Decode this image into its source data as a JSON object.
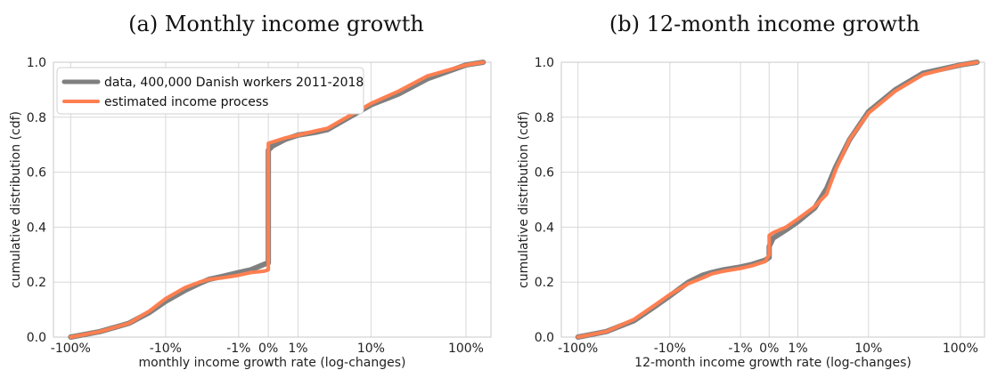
{
  "colors": {
    "data": "#808080",
    "model": "#ff7f50",
    "grid": "#d8d8d8"
  },
  "chart_data": [
    {
      "type": "line",
      "title": "(a) Monthly income growth",
      "xlabel": "monthly income growth rate (log-changes)",
      "ylabel": "cumulative distribution (cdf)",
      "x_ticks": [
        "-100%",
        "-10%",
        "-1%",
        "0%",
        "1%",
        "10%",
        "100%"
      ],
      "y_ticks": [
        "0.0",
        "0.2",
        "0.4",
        "0.6",
        "0.8",
        "1.0"
      ],
      "ylim": [
        0,
        1
      ],
      "legend": "top-left",
      "series": [
        {
          "name": "data, 400,000 Danish workers 2011-2018",
          "x": [
            "-100%",
            "-50%",
            "-25%",
            "-15%",
            "-10%",
            "-6%",
            "-4%",
            "-3%",
            "-2%",
            "-1%",
            "-0.5%",
            "-0.1%",
            "0%",
            "0%",
            "0.1%",
            "0.5%",
            "1%",
            "2%",
            "3%",
            "4%",
            "6%",
            "10%",
            "20%",
            "40%",
            "100%",
            "150%"
          ],
          "y": [
            0.0,
            0.02,
            0.05,
            0.09,
            0.13,
            0.17,
            0.195,
            0.21,
            0.22,
            0.235,
            0.245,
            0.265,
            0.27,
            0.68,
            0.695,
            0.72,
            0.735,
            0.745,
            0.755,
            0.775,
            0.805,
            0.845,
            0.885,
            0.94,
            0.99,
            1.0
          ]
        },
        {
          "name": "estimated income process",
          "x": [
            "-100%",
            "-50%",
            "-25%",
            "-15%",
            "-10%",
            "-6%",
            "-4%",
            "-3%",
            "-2%",
            "-1%",
            "-0.5%",
            "-0.1%",
            "0%",
            "0%",
            "0.1%",
            "0.5%",
            "1%",
            "2%",
            "3%",
            "4%",
            "6%",
            "10%",
            "20%",
            "40%",
            "100%",
            "150%"
          ],
          "y": [
            0.0,
            0.02,
            0.05,
            0.095,
            0.14,
            0.18,
            0.2,
            0.21,
            0.215,
            0.225,
            0.235,
            0.24,
            0.245,
            0.705,
            0.71,
            0.725,
            0.735,
            0.75,
            0.76,
            0.78,
            0.81,
            0.85,
            0.895,
            0.95,
            0.99,
            1.0
          ]
        }
      ]
    },
    {
      "type": "line",
      "title": "(b) 12-month income growth",
      "xlabel": "12-month income growth rate (log-changes)",
      "ylabel": "cumulative distribution (cdf)",
      "x_ticks": [
        "-100%",
        "-10%",
        "-1%",
        "0%",
        "1%",
        "10%",
        "100%"
      ],
      "y_ticks": [
        "0.0",
        "0.2",
        "0.4",
        "0.6",
        "0.8",
        "1.0"
      ],
      "ylim": [
        0,
        1
      ],
      "series": [
        {
          "name": "data, 400,000 Danish workers 2011-2018",
          "x": [
            "-100%",
            "-50%",
            "-25%",
            "-15%",
            "-10%",
            "-6%",
            "-4%",
            "-3%",
            "-2%",
            "-1%",
            "-0.5%",
            "-0.1%",
            "0%",
            "0%",
            "0.1%",
            "0.5%",
            "1%",
            "2%",
            "3%",
            "4%",
            "6%",
            "10%",
            "20%",
            "40%",
            "100%",
            "150%"
          ],
          "y": [
            0.0,
            0.02,
            0.06,
            0.11,
            0.15,
            0.2,
            0.225,
            0.235,
            0.245,
            0.255,
            0.265,
            0.28,
            0.29,
            0.33,
            0.36,
            0.39,
            0.42,
            0.47,
            0.54,
            0.62,
            0.72,
            0.82,
            0.9,
            0.96,
            0.99,
            1.0
          ]
        },
        {
          "name": "estimated income process",
          "x": [
            "-100%",
            "-50%",
            "-25%",
            "-15%",
            "-10%",
            "-6%",
            "-4%",
            "-3%",
            "-2%",
            "-1%",
            "-0.5%",
            "-0.1%",
            "0%",
            "0%",
            "0.1%",
            "0.5%",
            "1%",
            "2%",
            "3%",
            "4%",
            "6%",
            "10%",
            "20%",
            "40%",
            "100%",
            "150%"
          ],
          "y": [
            0.0,
            0.02,
            0.065,
            0.115,
            0.155,
            0.195,
            0.215,
            0.23,
            0.24,
            0.25,
            0.26,
            0.275,
            0.3,
            0.37,
            0.38,
            0.4,
            0.43,
            0.475,
            0.52,
            0.61,
            0.72,
            0.815,
            0.895,
            0.955,
            0.99,
            1.0
          ]
        }
      ]
    }
  ]
}
